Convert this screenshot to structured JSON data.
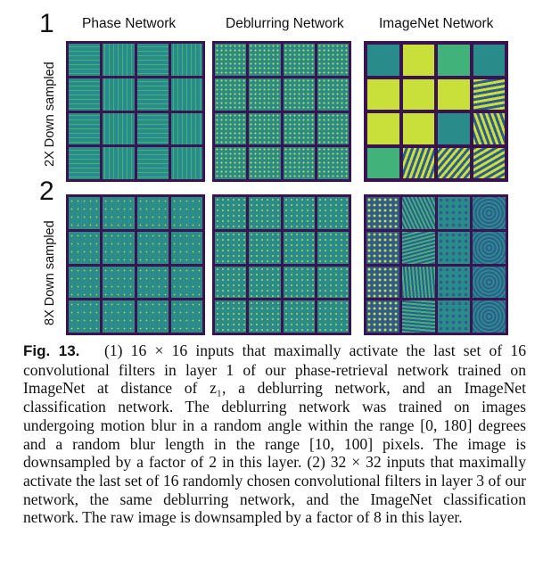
{
  "figure": {
    "row_numbers": [
      "1",
      "2"
    ],
    "column_titles": [
      "Phase Network",
      "Deblurring Network",
      "ImageNet Network"
    ],
    "row_labels": [
      "2X Down sampled",
      "8X Down sampled"
    ]
  },
  "caption": {
    "label": "Fig. 13.",
    "text": "(1) 16 × 16 inputs that maximally activate the last set of 16 convolutional filters in layer 1 of our phase-retrieval network trained on ImageNet at distance of z₁, a deblurring network, and an ImageNet classification network. The deblurring network was trained on images undergoing motion blur in a random angle within the range [0, 180] degrees and a random blur length in the range [10, 100] pixels. The image is downsampled by a factor of 2 in this layer. (2) 32 × 32 inputs that maximally activate the last set of 16 randomly chosen convolutional filters in layer 3 of our network, the same deblurring network, and the ImageNet classification network. The raw image is downsampled by a factor of 8 in this layer."
  },
  "colors": {
    "panel_border": "#3a1350",
    "teal": "#2a8c8a",
    "yellow_green": "#c9e03a",
    "green": "#41b27a",
    "dark_blue": "#2f5b8e"
  }
}
